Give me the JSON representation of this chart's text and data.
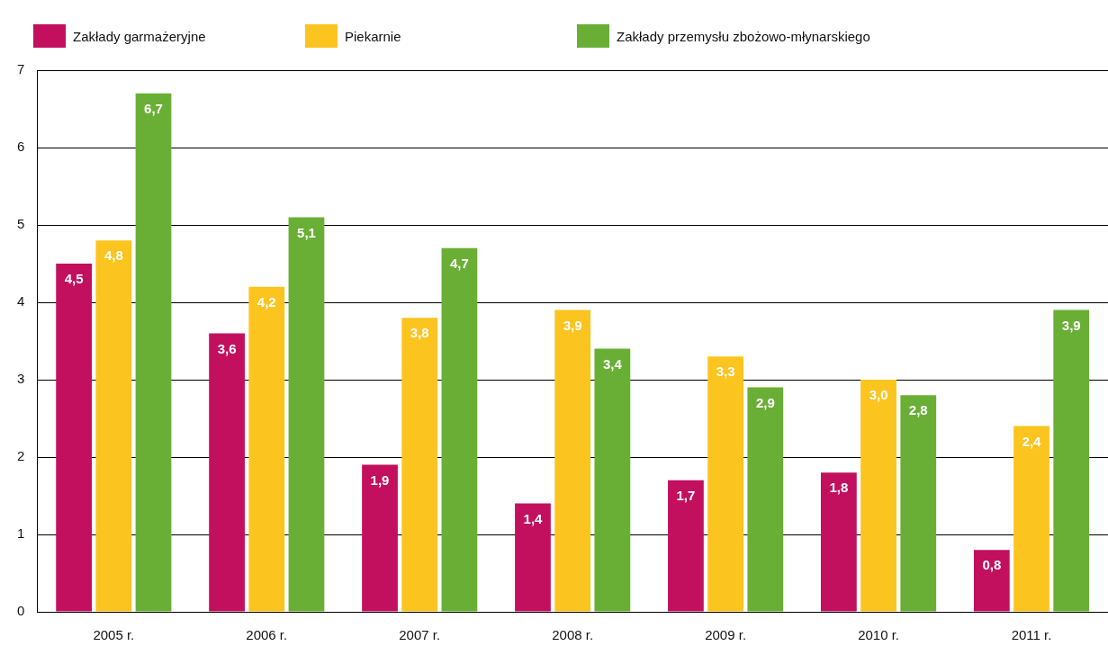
{
  "chart_data": {
    "type": "bar",
    "categories": [
      "2005 r.",
      "2006 r.",
      "2007 r.",
      "2008 r.",
      "2009 r.",
      "2010 r.",
      "2011 r."
    ],
    "series": [
      {
        "name": "Zakłady garmażeryjne",
        "color": "#c2105f",
        "values": [
          4.5,
          3.6,
          1.9,
          1.4,
          1.7,
          1.8,
          0.8
        ],
        "value_labels": [
          "4,5",
          "3,6",
          "1,9",
          "1,4",
          "1,7",
          "1,8",
          "0,8"
        ]
      },
      {
        "name": "Piekarnie",
        "color": "#fcc41f",
        "values": [
          4.8,
          4.2,
          3.8,
          3.9,
          3.3,
          3.0,
          2.4
        ],
        "value_labels": [
          "4,8",
          "4,2",
          "3,8",
          "3,9",
          "3,3",
          "3,0",
          "2,4"
        ]
      },
      {
        "name": "Zakłady przemysłu zbożowo-młynarskiego",
        "color": "#6aaf35",
        "values": [
          6.7,
          5.1,
          4.7,
          3.4,
          2.9,
          2.8,
          3.9
        ],
        "value_labels": [
          "6,7",
          "5,1",
          "4,7",
          "3,4",
          "2,9",
          "2,8",
          "3,9"
        ]
      }
    ],
    "ylim": [
      0,
      7
    ],
    "yticks": [
      0,
      1,
      2,
      3,
      4,
      5,
      6,
      7
    ],
    "grid": "y",
    "legend": "top left"
  }
}
